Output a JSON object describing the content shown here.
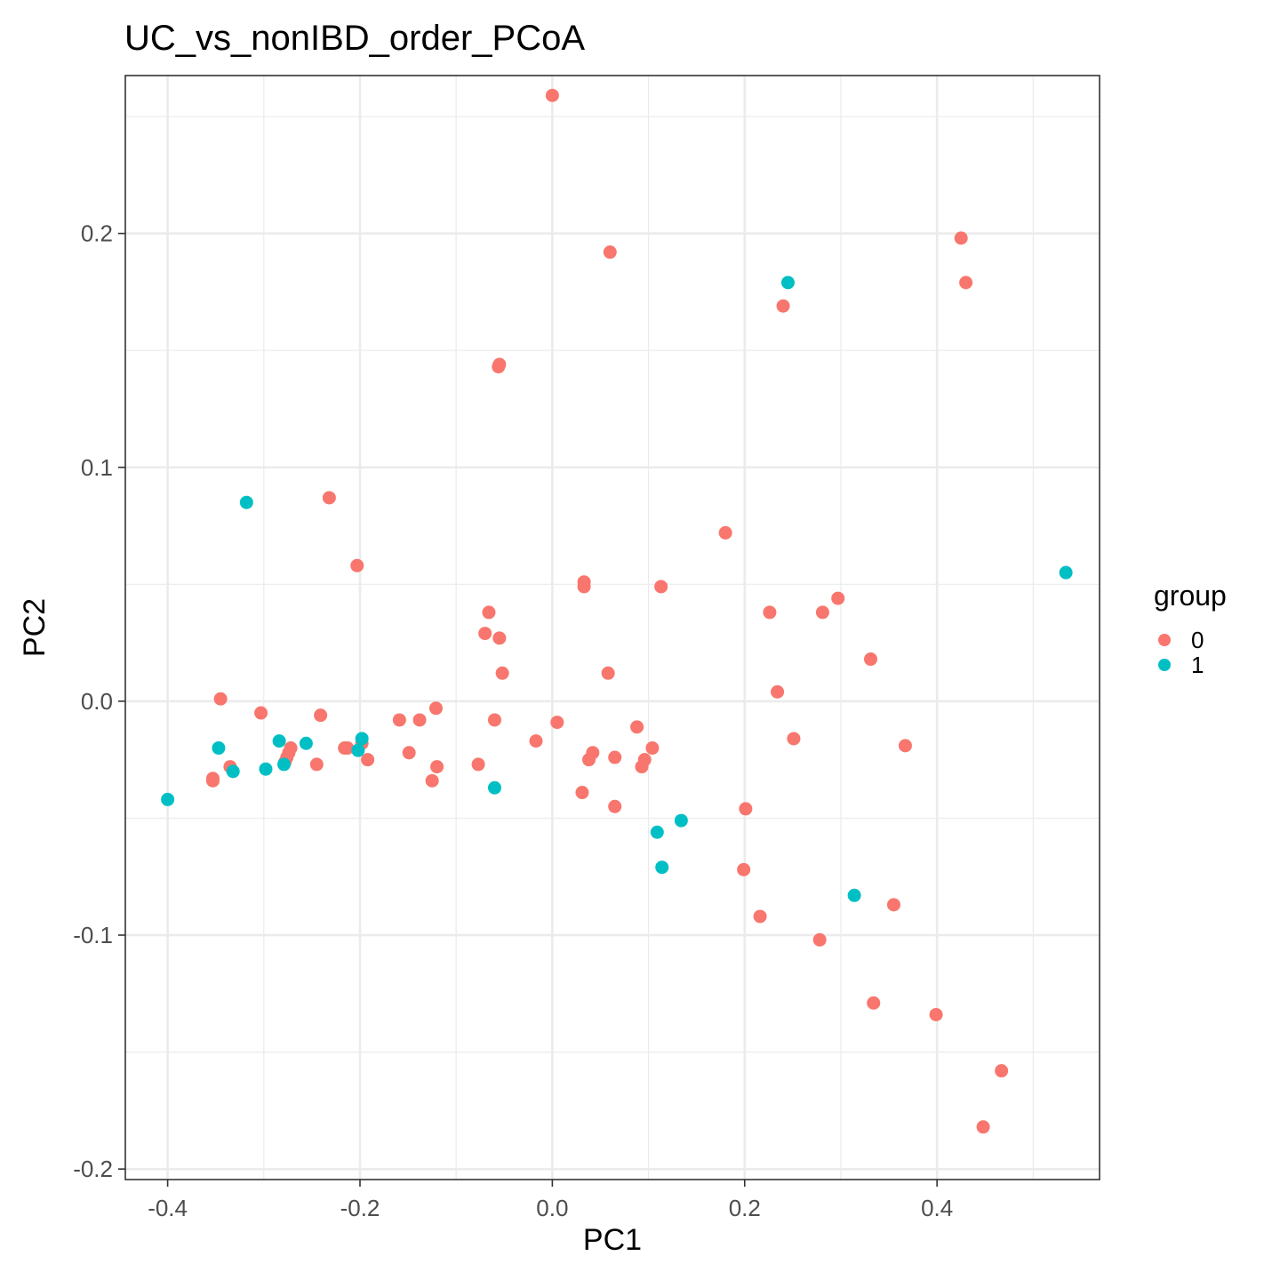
{
  "chart_data": {
    "type": "scatter",
    "title": "UC_vs_nonIBD_order_PCoA",
    "xlabel": "PC1",
    "ylabel": "PC2",
    "xlim": [
      -0.444,
      0.569
    ],
    "ylim": [
      -0.2045,
      0.2675
    ],
    "xticks": [
      -0.4,
      -0.2,
      0.0,
      0.2,
      0.4
    ],
    "xtick_labels": [
      "-0.4",
      "-0.2",
      "0.0",
      "0.2",
      "0.4"
    ],
    "yticks": [
      -0.2,
      -0.1,
      0.0,
      0.1,
      0.2
    ],
    "ytick_labels": [
      "-0.2",
      "-0.1",
      "0.0",
      "0.1",
      "0.2"
    ],
    "grid": true,
    "legend": {
      "title": "group",
      "position": "right"
    },
    "series": [
      {
        "name": "0",
        "color": "#F8766D",
        "points": [
          [
            0.0,
            0.259
          ],
          [
            0.06,
            0.192
          ],
          [
            -0.055,
            0.144
          ],
          [
            -0.056,
            0.143
          ],
          [
            0.425,
            0.198
          ],
          [
            0.43,
            0.179
          ],
          [
            0.24,
            0.169
          ],
          [
            -0.232,
            0.087
          ],
          [
            -0.203,
            0.058
          ],
          [
            0.18,
            0.072
          ],
          [
            0.033,
            0.051
          ],
          [
            0.033,
            0.049
          ],
          [
            0.113,
            0.049
          ],
          [
            0.297,
            0.044
          ],
          [
            -0.066,
            0.038
          ],
          [
            0.226,
            0.038
          ],
          [
            0.281,
            0.038
          ],
          [
            -0.07,
            0.029
          ],
          [
            -0.055,
            0.027
          ],
          [
            0.331,
            0.018
          ],
          [
            -0.052,
            0.012
          ],
          [
            0.058,
            0.012
          ],
          [
            0.234,
            0.004
          ],
          [
            -0.345,
            0.001
          ],
          [
            -0.303,
            -0.005
          ],
          [
            -0.241,
            -0.006
          ],
          [
            -0.121,
            -0.003
          ],
          [
            -0.138,
            -0.008
          ],
          [
            -0.159,
            -0.008
          ],
          [
            -0.06,
            -0.008
          ],
          [
            0.005,
            -0.009
          ],
          [
            0.088,
            -0.011
          ],
          [
            0.251,
            -0.016
          ],
          [
            -0.017,
            -0.017
          ],
          [
            0.367,
            -0.019
          ],
          [
            -0.216,
            -0.02
          ],
          [
            -0.213,
            -0.02
          ],
          [
            -0.198,
            -0.018
          ],
          [
            -0.272,
            -0.02
          ],
          [
            -0.274,
            -0.022
          ],
          [
            -0.276,
            -0.024
          ],
          [
            -0.278,
            -0.026
          ],
          [
            -0.149,
            -0.022
          ],
          [
            0.104,
            -0.02
          ],
          [
            0.042,
            -0.022
          ],
          [
            0.038,
            -0.025
          ],
          [
            0.065,
            -0.024
          ],
          [
            0.096,
            -0.025
          ],
          [
            0.093,
            -0.028
          ],
          [
            -0.192,
            -0.025
          ],
          [
            -0.335,
            -0.028
          ],
          [
            -0.245,
            -0.027
          ],
          [
            -0.12,
            -0.028
          ],
          [
            -0.077,
            -0.027
          ],
          [
            -0.353,
            -0.033
          ],
          [
            -0.353,
            -0.034
          ],
          [
            -0.125,
            -0.034
          ],
          [
            0.031,
            -0.039
          ],
          [
            0.065,
            -0.045
          ],
          [
            0.201,
            -0.046
          ],
          [
            0.199,
            -0.072
          ],
          [
            0.355,
            -0.087
          ],
          [
            0.216,
            -0.092
          ],
          [
            0.278,
            -0.102
          ],
          [
            0.334,
            -0.129
          ],
          [
            0.399,
            -0.134
          ],
          [
            0.467,
            -0.158
          ],
          [
            0.448,
            -0.182
          ]
        ]
      },
      {
        "name": "1",
        "color": "#00BFC4",
        "points": [
          [
            0.245,
            0.179
          ],
          [
            0.534,
            0.055
          ],
          [
            -0.318,
            0.085
          ],
          [
            -0.198,
            -0.016
          ],
          [
            -0.284,
            -0.017
          ],
          [
            -0.256,
            -0.018
          ],
          [
            -0.347,
            -0.02
          ],
          [
            -0.202,
            -0.021
          ],
          [
            -0.279,
            -0.027
          ],
          [
            -0.298,
            -0.029
          ],
          [
            -0.332,
            -0.03
          ],
          [
            -0.06,
            -0.037
          ],
          [
            -0.4,
            -0.042
          ],
          [
            0.134,
            -0.051
          ],
          [
            0.109,
            -0.056
          ],
          [
            0.114,
            -0.071
          ],
          [
            0.314,
            -0.083
          ]
        ]
      }
    ]
  }
}
